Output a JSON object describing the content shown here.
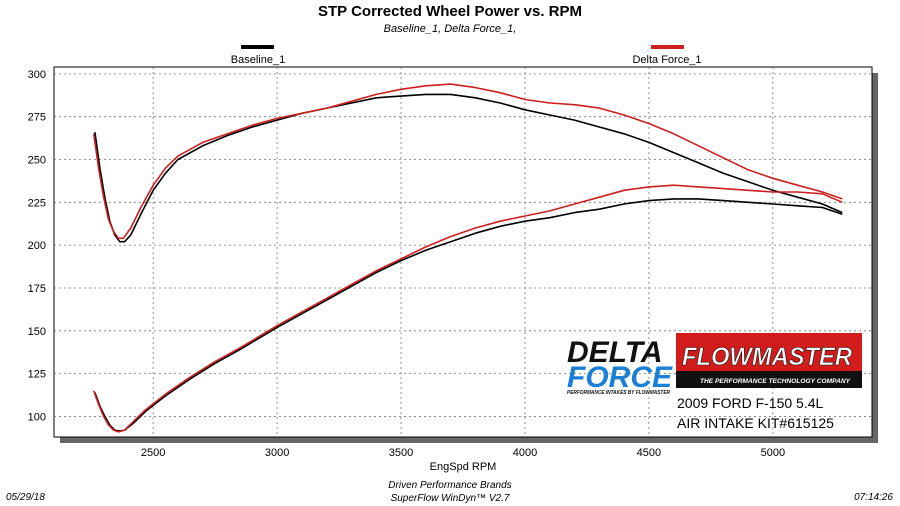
{
  "chart_data": {
    "type": "line",
    "title": "STP Corrected Wheel Power vs. RPM",
    "subtitle": "Baseline_1, Delta Force_1,",
    "xlabel": "EngSpd  RPM",
    "ylabel": "",
    "xlim": [
      2100,
      5400
    ],
    "ylim": [
      88,
      304
    ],
    "x_ticks": [
      2500,
      3000,
      3500,
      4000,
      4500,
      5000
    ],
    "y_ticks": [
      100,
      125,
      150,
      175,
      200,
      225,
      250,
      275,
      300
    ],
    "grid": true,
    "legend_placement": "top",
    "series": [
      {
        "name": "Baseline_1",
        "color": "#000000",
        "segments": [
          [
            [
              2265,
              266
            ],
            [
              2285,
              245
            ],
            [
              2305,
              228
            ],
            [
              2325,
              214
            ],
            [
              2345,
              206
            ],
            [
              2365,
              202
            ],
            [
              2385,
              202
            ],
            [
              2410,
              206
            ],
            [
              2450,
              218
            ],
            [
              2500,
              232
            ],
            [
              2550,
              242
            ],
            [
              2600,
              250
            ],
            [
              2700,
              258
            ],
            [
              2800,
              264
            ],
            [
              2900,
              269
            ],
            [
              3000,
              273
            ],
            [
              3100,
              277
            ],
            [
              3200,
              280
            ],
            [
              3300,
              283
            ],
            [
              3400,
              286
            ],
            [
              3500,
              287
            ],
            [
              3600,
              288
            ],
            [
              3700,
              288
            ],
            [
              3800,
              286
            ],
            [
              3900,
              283
            ],
            [
              4000,
              279
            ],
            [
              4100,
              276
            ],
            [
              4200,
              273
            ],
            [
              4300,
              269
            ],
            [
              4400,
              265
            ],
            [
              4500,
              260
            ],
            [
              4600,
              254
            ],
            [
              4700,
              248
            ],
            [
              4800,
              242
            ],
            [
              4900,
              237
            ],
            [
              5000,
              232
            ],
            [
              5100,
              228
            ],
            [
              5200,
              224
            ],
            [
              5280,
              219
            ]
          ],
          [
            [
              2265,
              114
            ],
            [
              2285,
              106
            ],
            [
              2305,
              100
            ],
            [
              2325,
              95
            ],
            [
              2345,
              92
            ],
            [
              2365,
              91.5
            ],
            [
              2385,
              92
            ],
            [
              2420,
              96
            ],
            [
              2470,
              103
            ],
            [
              2550,
              112
            ],
            [
              2650,
              122
            ],
            [
              2750,
              131
            ],
            [
              2850,
              139
            ],
            [
              3000,
              152
            ],
            [
              3100,
              160
            ],
            [
              3200,
              168
            ],
            [
              3300,
              176
            ],
            [
              3400,
              184
            ],
            [
              3500,
              191
            ],
            [
              3600,
              197
            ],
            [
              3700,
              202
            ],
            [
              3800,
              207
            ],
            [
              3900,
              211
            ],
            [
              4000,
              214
            ],
            [
              4100,
              216
            ],
            [
              4200,
              219
            ],
            [
              4300,
              221
            ],
            [
              4400,
              224
            ],
            [
              4500,
              226
            ],
            [
              4600,
              227
            ],
            [
              4700,
              227
            ],
            [
              4800,
              226
            ],
            [
              4900,
              225
            ],
            [
              5000,
              224
            ],
            [
              5100,
              223
            ],
            [
              5200,
              222
            ],
            [
              5280,
              218
            ]
          ]
        ]
      },
      {
        "name": "Delta Force_1",
        "color": "#cc1f1f",
        "segments": [
          [
            [
              2260,
              265
            ],
            [
              2280,
              245
            ],
            [
              2300,
              228
            ],
            [
              2320,
              215
            ],
            [
              2340,
              208
            ],
            [
              2360,
              204
            ],
            [
              2380,
              204
            ],
            [
              2410,
              210
            ],
            [
              2450,
              222
            ],
            [
              2500,
              235
            ],
            [
              2550,
              245
            ],
            [
              2600,
              252
            ],
            [
              2700,
              260
            ],
            [
              2800,
              265
            ],
            [
              2900,
              270
            ],
            [
              3000,
              274
            ],
            [
              3100,
              277
            ],
            [
              3200,
              280
            ],
            [
              3300,
              284
            ],
            [
              3400,
              288
            ],
            [
              3500,
              291
            ],
            [
              3600,
              293
            ],
            [
              3700,
              294
            ],
            [
              3800,
              292
            ],
            [
              3900,
              289
            ],
            [
              4000,
              285
            ],
            [
              4100,
              283
            ],
            [
              4200,
              282
            ],
            [
              4300,
              280
            ],
            [
              4400,
              276
            ],
            [
              4500,
              271
            ],
            [
              4600,
              265
            ],
            [
              4700,
              258
            ],
            [
              4800,
              251
            ],
            [
              4900,
              244
            ],
            [
              5000,
              239
            ],
            [
              5100,
              235
            ],
            [
              5200,
              231
            ],
            [
              5280,
              227
            ]
          ],
          [
            [
              2260,
              115
            ],
            [
              2280,
              107
            ],
            [
              2300,
              100
            ],
            [
              2320,
              95
            ],
            [
              2340,
              92
            ],
            [
              2360,
              91
            ],
            [
              2385,
              92
            ],
            [
              2420,
              97
            ],
            [
              2470,
              104
            ],
            [
              2550,
              113
            ],
            [
              2650,
              123
            ],
            [
              2750,
              132
            ],
            [
              2850,
              140
            ],
            [
              3000,
              153
            ],
            [
              3100,
              161
            ],
            [
              3200,
              169
            ],
            [
              3300,
              177
            ],
            [
              3400,
              185
            ],
            [
              3500,
              192
            ],
            [
              3600,
              199
            ],
            [
              3700,
              205
            ],
            [
              3800,
              210
            ],
            [
              3900,
              214
            ],
            [
              4000,
              217
            ],
            [
              4100,
              220
            ],
            [
              4200,
              224
            ],
            [
              4300,
              228
            ],
            [
              4400,
              232
            ],
            [
              4500,
              234
            ],
            [
              4600,
              235
            ],
            [
              4700,
              234
            ],
            [
              4800,
              233
            ],
            [
              4900,
              232
            ],
            [
              5000,
              231
            ],
            [
              5100,
              231
            ],
            [
              5200,
              230
            ],
            [
              5280,
              225
            ]
          ]
        ]
      }
    ],
    "annotations": [
      "2009 FORD F-150 5.4L",
      "AIR INTAKE KIT#615125"
    ]
  },
  "logos": {
    "delta_force": {
      "line1": "DELTA",
      "line2": "FORCE",
      "tagline": "PERFORMANCE INTAKES BY FLOWMASTER",
      "colors": {
        "black": "#111111",
        "blue": "#1a7fd6"
      }
    },
    "flowmaster": {
      "name": "FLOWMASTER",
      "tagline": "THE PERFORMANCE TECHNOLOGY COMPANY",
      "colors": {
        "red": "#d21b1b",
        "black": "#111111"
      }
    }
  },
  "footer": {
    "date": "05/29/18",
    "line1": "Driven Performance Brands",
    "line2": "SuperFlow WinDyn™  V2.7",
    "time": "07:14:26"
  }
}
